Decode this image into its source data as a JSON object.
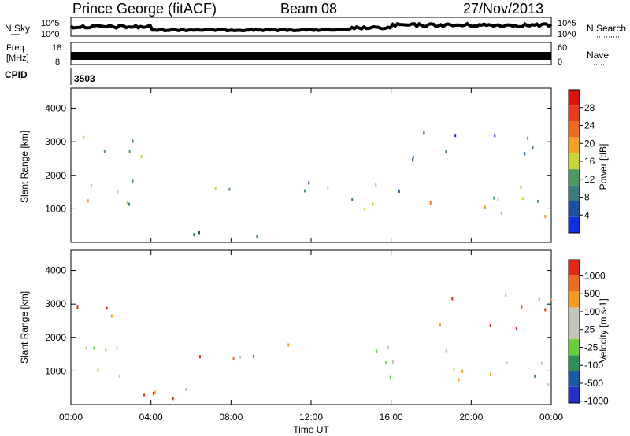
{
  "header": {
    "station": "Prince George (fitACF)",
    "beam": "Beam 08",
    "date": "27/Nov/2013"
  },
  "top_panel": {
    "left_label": "N.Sky",
    "right_label": "N.Search",
    "left_ticks": [
      "10^5",
      "10^0"
    ],
    "right_ticks": [
      "10^5",
      "10^0"
    ]
  },
  "freq_panel": {
    "left_label_1": "Freq.",
    "left_label_2": "[MHz]",
    "right_label": "Nave",
    "left_ticks": [
      "18",
      "8"
    ],
    "right_ticks": [
      "60",
      "0"
    ]
  },
  "cpid": {
    "label": "CPID",
    "value": "3503"
  },
  "colors": {
    "power_scale": [
      "#1030e0",
      "#1f4fa3",
      "#3c7a7e",
      "#4c9a5f",
      "#c8d43a",
      "#f2a126",
      "#ee6b1f",
      "#e83a1c",
      "#e01010"
    ],
    "velocity_scale": [
      "#2030c8",
      "#1b5aa8",
      "#2f8f5a",
      "#6ad03a",
      "#c4c4bc",
      "#c4c4bc",
      "#f59a20",
      "#ee6a1f",
      "#e02a16"
    ]
  },
  "chart_data": [
    {
      "type": "heatmap",
      "panel": "power",
      "ylabel": "Slant Range [km]",
      "ylim": [
        0,
        4600
      ],
      "yticks": [
        1000,
        2000,
        3000,
        4000
      ],
      "xlim": [
        0,
        24
      ],
      "colorbar_label": "Power [dB]",
      "colorbar_ticks": [
        "4",
        "8",
        "12",
        "16",
        "20",
        "24",
        "28"
      ],
      "regions": [
        {
          "t0": 0.0,
          "t1": 3.5,
          "r0": 700,
          "r1": 3500,
          "level": 0.45
        },
        {
          "t0": 5.5,
          "t1": 13.0,
          "r0": 1400,
          "r1": 2000,
          "level": 0.35
        },
        {
          "t0": 0.3,
          "t1": 15.5,
          "r0": 200,
          "r1": 400,
          "level": 0.3
        },
        {
          "t0": 14.0,
          "t1": 16.5,
          "r0": 800,
          "r1": 2600,
          "level": 0.4
        },
        {
          "t0": 16.5,
          "t1": 24.0,
          "r0": 600,
          "r1": 1700,
          "level": 0.6
        },
        {
          "t0": 17.0,
          "t1": 24.0,
          "r0": 2200,
          "r1": 3400,
          "level": 0.15
        }
      ]
    },
    {
      "type": "heatmap",
      "panel": "velocity",
      "ylabel": "Slant Range [km]",
      "xlabel": "Time UT",
      "ylim": [
        0,
        4600
      ],
      "yticks": [
        1000,
        2000,
        3000,
        4000
      ],
      "xlim": [
        0,
        24
      ],
      "xticks": [
        "00:00",
        "04:00",
        "08:00",
        "12:00",
        "16:00",
        "20:00",
        "00:00"
      ],
      "colorbar_label": "Velocity [m s-1]",
      "colorbar_ticks": [
        "1000",
        "500",
        "100",
        "25",
        "-25",
        "-100",
        "-500",
        "-1000"
      ],
      "regions": [
        {
          "t0": 0.0,
          "t1": 3.5,
          "r0": 700,
          "r1": 2200,
          "level": 0.5
        },
        {
          "t0": 0.0,
          "t1": 2.5,
          "r0": 2300,
          "r1": 3500,
          "level": 0.75
        },
        {
          "t0": 5.5,
          "t1": 13.0,
          "r0": 1400,
          "r1": 2000,
          "level": 0.8
        },
        {
          "t0": 0.3,
          "t1": 15.5,
          "r0": 200,
          "r1": 500,
          "level": 0.78
        },
        {
          "t0": 14.0,
          "t1": 16.5,
          "r0": 800,
          "r1": 2600,
          "level": 0.5
        },
        {
          "t0": 16.5,
          "t1": 24.0,
          "r0": 600,
          "r1": 1700,
          "level": 0.5
        },
        {
          "t0": 17.0,
          "t1": 24.0,
          "r0": 2300,
          "r1": 3400,
          "level": 0.82
        }
      ]
    }
  ]
}
